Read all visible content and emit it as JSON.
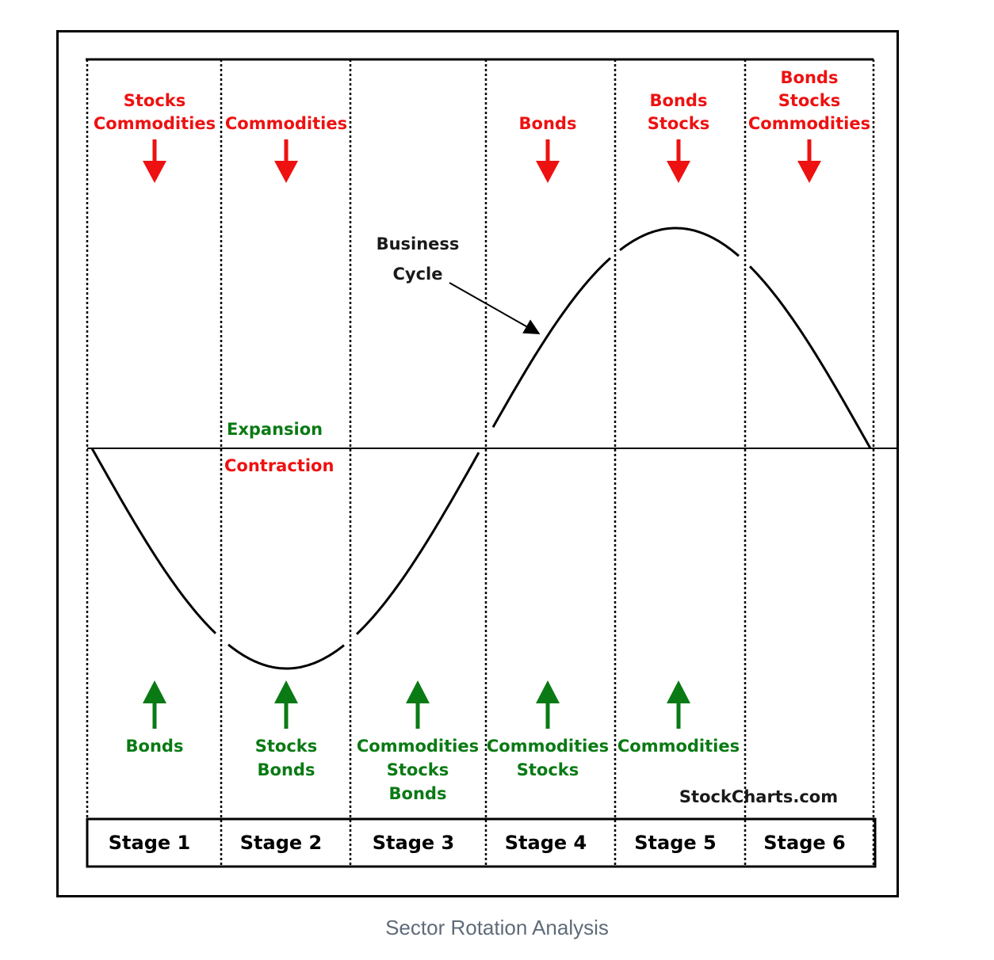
{
  "caption": "Sector Rotation Analysis",
  "watermark": "StockCharts.com",
  "business_cycle_label": [
    "Business",
    "Cycle"
  ],
  "expansion_label": "Expansion",
  "contraction_label": "Contraction",
  "colors": {
    "top_labels": "#ee1111",
    "bottom_labels": "#0a7a14",
    "curve": "#000000"
  },
  "stages": [
    {
      "name": "Stage 1",
      "top": [
        "Stocks",
        "Commodities"
      ],
      "bottom": [
        "Bonds"
      ]
    },
    {
      "name": "Stage 2",
      "top": [
        "Commodities"
      ],
      "bottom": [
        "Stocks",
        "Bonds"
      ]
    },
    {
      "name": "Stage 3",
      "top": [],
      "bottom": [
        "Commodities",
        "Stocks",
        "Bonds"
      ]
    },
    {
      "name": "Stage 4",
      "top": [
        "Bonds"
      ],
      "bottom": [
        "Commodities",
        "Stocks"
      ]
    },
    {
      "name": "Stage 5",
      "top": [
        "Bonds",
        "Stocks"
      ],
      "bottom": [
        "Commodities"
      ]
    },
    {
      "name": "Stage 6",
      "top": [
        "Bonds",
        "Stocks",
        "Commodities"
      ],
      "bottom": []
    }
  ],
  "icons": {
    "top_arrow": "arrow-down-icon",
    "bottom_arrow": "arrow-up-icon"
  }
}
